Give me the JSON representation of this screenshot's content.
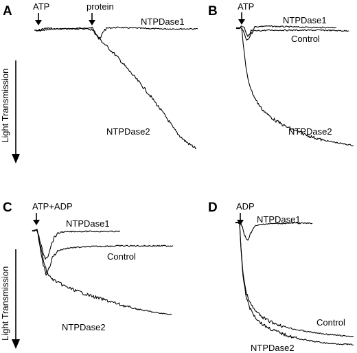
{
  "chart_data": [
    {
      "type": "line",
      "panel": "A",
      "ylabel": "Light Transmission",
      "markers": [
        "ATP",
        "protein"
      ],
      "series": [
        {
          "name": "NTPDase1",
          "points": [
            [
              50,
              44
            ],
            [
              56,
              45
            ],
            [
              62,
              42
            ],
            [
              70,
              41
            ],
            [
              80,
              42
            ],
            [
              100,
              42
            ],
            [
              120,
              41
            ],
            [
              134,
              41
            ],
            [
              138,
              44
            ],
            [
              141,
              50
            ],
            [
              144,
              57
            ],
            [
              147,
              55
            ],
            [
              150,
              46
            ],
            [
              155,
              41
            ],
            [
              170,
              40
            ],
            [
              200,
              41
            ],
            [
              230,
              42
            ],
            [
              260,
              42
            ],
            [
              288,
              42
            ]
          ]
        },
        {
          "name": "NTPDase2",
          "points": [
            [
              50,
              44
            ],
            [
              56,
              45
            ],
            [
              62,
              44
            ],
            [
              70,
              43
            ],
            [
              90,
              42
            ],
            [
              110,
              42
            ],
            [
              130,
              42
            ],
            [
              135,
              44
            ],
            [
              140,
              50
            ],
            [
              146,
              58
            ],
            [
              152,
              64
            ],
            [
              160,
              72
            ],
            [
              170,
              82
            ],
            [
              182,
              96
            ],
            [
              195,
              111
            ],
            [
              208,
              126
            ],
            [
              220,
              141
            ],
            [
              232,
              157
            ],
            [
              243,
              172
            ],
            [
              252,
              186
            ],
            [
              260,
              196
            ],
            [
              268,
              204
            ],
            [
              276,
              210
            ],
            [
              286,
              216
            ]
          ]
        }
      ]
    },
    {
      "type": "line",
      "panel": "B",
      "markers": [
        "ATP"
      ],
      "series": [
        {
          "name": "NTPDase1",
          "points": [
            [
              344,
              41
            ],
            [
              350,
              41
            ],
            [
              354,
              38
            ],
            [
              357,
              44
            ],
            [
              360,
              53
            ],
            [
              363,
              50
            ],
            [
              367,
              43
            ],
            [
              372,
              39
            ],
            [
              385,
              38
            ],
            [
              420,
              39
            ],
            [
              460,
              40
            ],
            [
              490,
              40
            ]
          ]
        },
        {
          "name": "Control",
          "points": [
            [
              344,
              41
            ],
            [
              352,
              41
            ],
            [
              356,
              50
            ],
            [
              359,
              60
            ],
            [
              362,
              58
            ],
            [
              366,
              49
            ],
            [
              372,
              45
            ],
            [
              390,
              44
            ],
            [
              430,
              44
            ],
            [
              470,
              44
            ],
            [
              508,
              45
            ]
          ]
        },
        {
          "name": "NTPDase2",
          "points": [
            [
              344,
              41
            ],
            [
              352,
              41
            ],
            [
              355,
              70
            ],
            [
              358,
              98
            ],
            [
              362,
              118
            ],
            [
              367,
              134
            ],
            [
              373,
              146
            ],
            [
              380,
              157
            ],
            [
              390,
              167
            ],
            [
              402,
              176
            ],
            [
              416,
              184
            ],
            [
              432,
              191
            ],
            [
              450,
              198
            ],
            [
              470,
              204
            ],
            [
              492,
              208
            ],
            [
              515,
              212
            ]
          ]
        }
      ]
    },
    {
      "type": "line",
      "panel": "C",
      "ylabel": "Light Transmission",
      "markers": [
        "ATP+ADP"
      ],
      "series": [
        {
          "name": "NTPDase1",
          "points": [
            [
              47,
              336
            ],
            [
              54,
              335
            ],
            [
              58,
              350
            ],
            [
              62,
              366
            ],
            [
              66,
              376
            ],
            [
              70,
              372
            ],
            [
              74,
              358
            ],
            [
              80,
              344
            ],
            [
              88,
              338
            ],
            [
              110,
              337
            ],
            [
              140,
              337
            ],
            [
              175,
              337
            ]
          ]
        },
        {
          "name": "Control",
          "points": [
            [
              47,
              336
            ],
            [
              54,
              335
            ],
            [
              58,
              358
            ],
            [
              63,
              385
            ],
            [
              67,
              399
            ],
            [
              71,
              392
            ],
            [
              76,
              376
            ],
            [
              84,
              365
            ],
            [
              100,
              361
            ],
            [
              130,
              359
            ],
            [
              170,
              358
            ],
            [
              210,
              358
            ],
            [
              252,
              358
            ]
          ]
        },
        {
          "name": "NTPDase2",
          "points": [
            [
              47,
              336
            ],
            [
              54,
              335
            ],
            [
              58,
              355
            ],
            [
              63,
              378
            ],
            [
              68,
              396
            ],
            [
              74,
              405
            ],
            [
              82,
              410
            ],
            [
              95,
              417
            ],
            [
              110,
              423
            ],
            [
              130,
              430
            ],
            [
              150,
              436
            ],
            [
              170,
              442
            ],
            [
              190,
              448
            ],
            [
              210,
              452
            ],
            [
              232,
              456
            ],
            [
              250,
              458
            ]
          ]
        }
      ]
    },
    {
      "type": "line",
      "panel": "D",
      "markers": [
        "ADP"
      ],
      "series": [
        {
          "name": "NTPDase1",
          "points": [
            [
              343,
              324
            ],
            [
              350,
              325
            ],
            [
              353,
              330
            ],
            [
              356,
              342
            ],
            [
              359,
              350
            ],
            [
              362,
              347
            ],
            [
              366,
              337
            ],
            [
              372,
              329
            ],
            [
              385,
              326
            ],
            [
              420,
              325
            ],
            [
              455,
              325
            ]
          ]
        },
        {
          "name": "Control",
          "points": [
            [
              343,
              324
            ],
            [
              349,
              325
            ],
            [
              351,
              360
            ],
            [
              354,
              398
            ],
            [
              358,
              424
            ],
            [
              364,
              441
            ],
            [
              372,
              453
            ],
            [
              382,
              462
            ],
            [
              395,
              469
            ],
            [
              412,
              475
            ],
            [
              432,
              480
            ],
            [
              455,
              484
            ],
            [
              478,
              487
            ],
            [
              500,
              489
            ],
            [
              515,
              490
            ]
          ]
        },
        {
          "name": "NTPDase2",
          "points": [
            [
              343,
              324
            ],
            [
              349,
              325
            ],
            [
              351,
              362
            ],
            [
              354,
              402
            ],
            [
              358,
              430
            ],
            [
              364,
              449
            ],
            [
              372,
              462
            ],
            [
              382,
              472
            ],
            [
              396,
              480
            ],
            [
              414,
              487
            ],
            [
              434,
              493
            ],
            [
              456,
              497
            ],
            [
              478,
              500
            ],
            [
              500,
              501
            ],
            [
              515,
              502
            ]
          ]
        }
      ]
    }
  ],
  "labels": {
    "A": "A",
    "B": "B",
    "C": "C",
    "D": "D",
    "A_atp": "ATP",
    "A_protein": "protein",
    "A_ntpd1": "NTPDase1",
    "A_ntpd2": "NTPDase2",
    "B_atp": "ATP",
    "B_ntpd1": "NTPDase1",
    "B_control": "Control",
    "B_ntpd2": "NTPDase2",
    "C_atpadp": "ATP+ADP",
    "C_ntpd1": "NTPDase1",
    "C_control": "Control",
    "C_ntpd2": "NTPDase2",
    "D_adp": "ADP",
    "D_ntpd1": "NTPDase1",
    "D_control": "Control",
    "D_ntpd2": "NTPDase2",
    "ylabel_top": "Light Transmission",
    "ylabel_bottom": "Light Transmission"
  }
}
